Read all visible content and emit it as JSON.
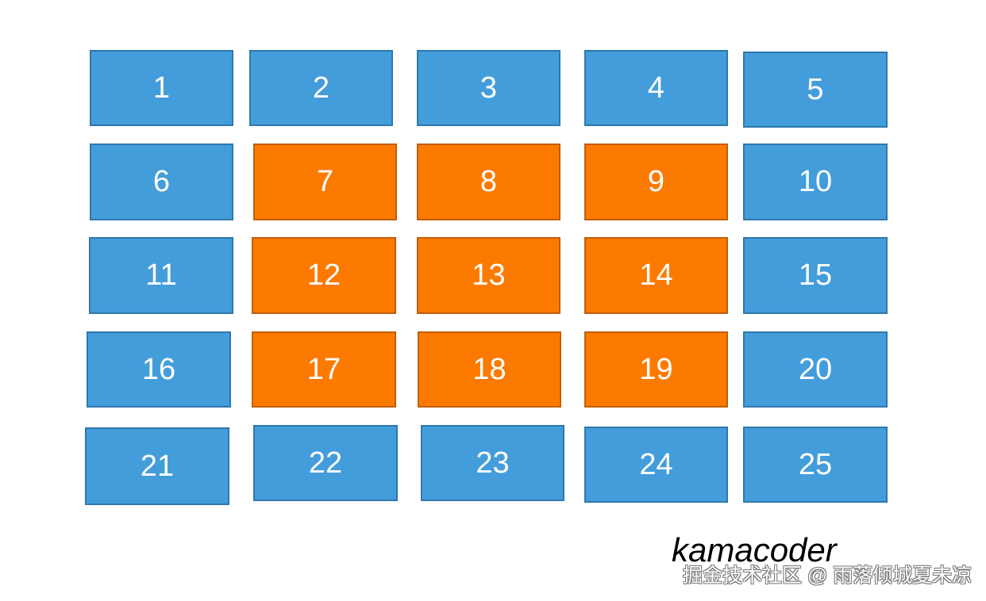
{
  "colors": {
    "normal": "#449ddb",
    "highlighted": "#fd7a00"
  },
  "grid": [
    {
      "label": "1",
      "highlighted": false
    },
    {
      "label": "2",
      "highlighted": false
    },
    {
      "label": "3",
      "highlighted": false
    },
    {
      "label": "4",
      "highlighted": false
    },
    {
      "label": "5",
      "highlighted": false
    },
    {
      "label": "6",
      "highlighted": false
    },
    {
      "label": "7",
      "highlighted": true
    },
    {
      "label": "8",
      "highlighted": true
    },
    {
      "label": "9",
      "highlighted": true
    },
    {
      "label": "10",
      "highlighted": false
    },
    {
      "label": "11",
      "highlighted": false
    },
    {
      "label": "12",
      "highlighted": true
    },
    {
      "label": "13",
      "highlighted": true
    },
    {
      "label": "14",
      "highlighted": true
    },
    {
      "label": "15",
      "highlighted": false
    },
    {
      "label": "16",
      "highlighted": false
    },
    {
      "label": "17",
      "highlighted": true
    },
    {
      "label": "18",
      "highlighted": true
    },
    {
      "label": "19",
      "highlighted": true
    },
    {
      "label": "20",
      "highlighted": false
    },
    {
      "label": "21",
      "highlighted": false
    },
    {
      "label": "22",
      "highlighted": false
    },
    {
      "label": "23",
      "highlighted": false
    },
    {
      "label": "24",
      "highlighted": false
    },
    {
      "label": "25",
      "highlighted": false
    }
  ],
  "brand": "kamacoder",
  "watermark": "掘金技术社区 @ 雨落倾城夏未凉"
}
